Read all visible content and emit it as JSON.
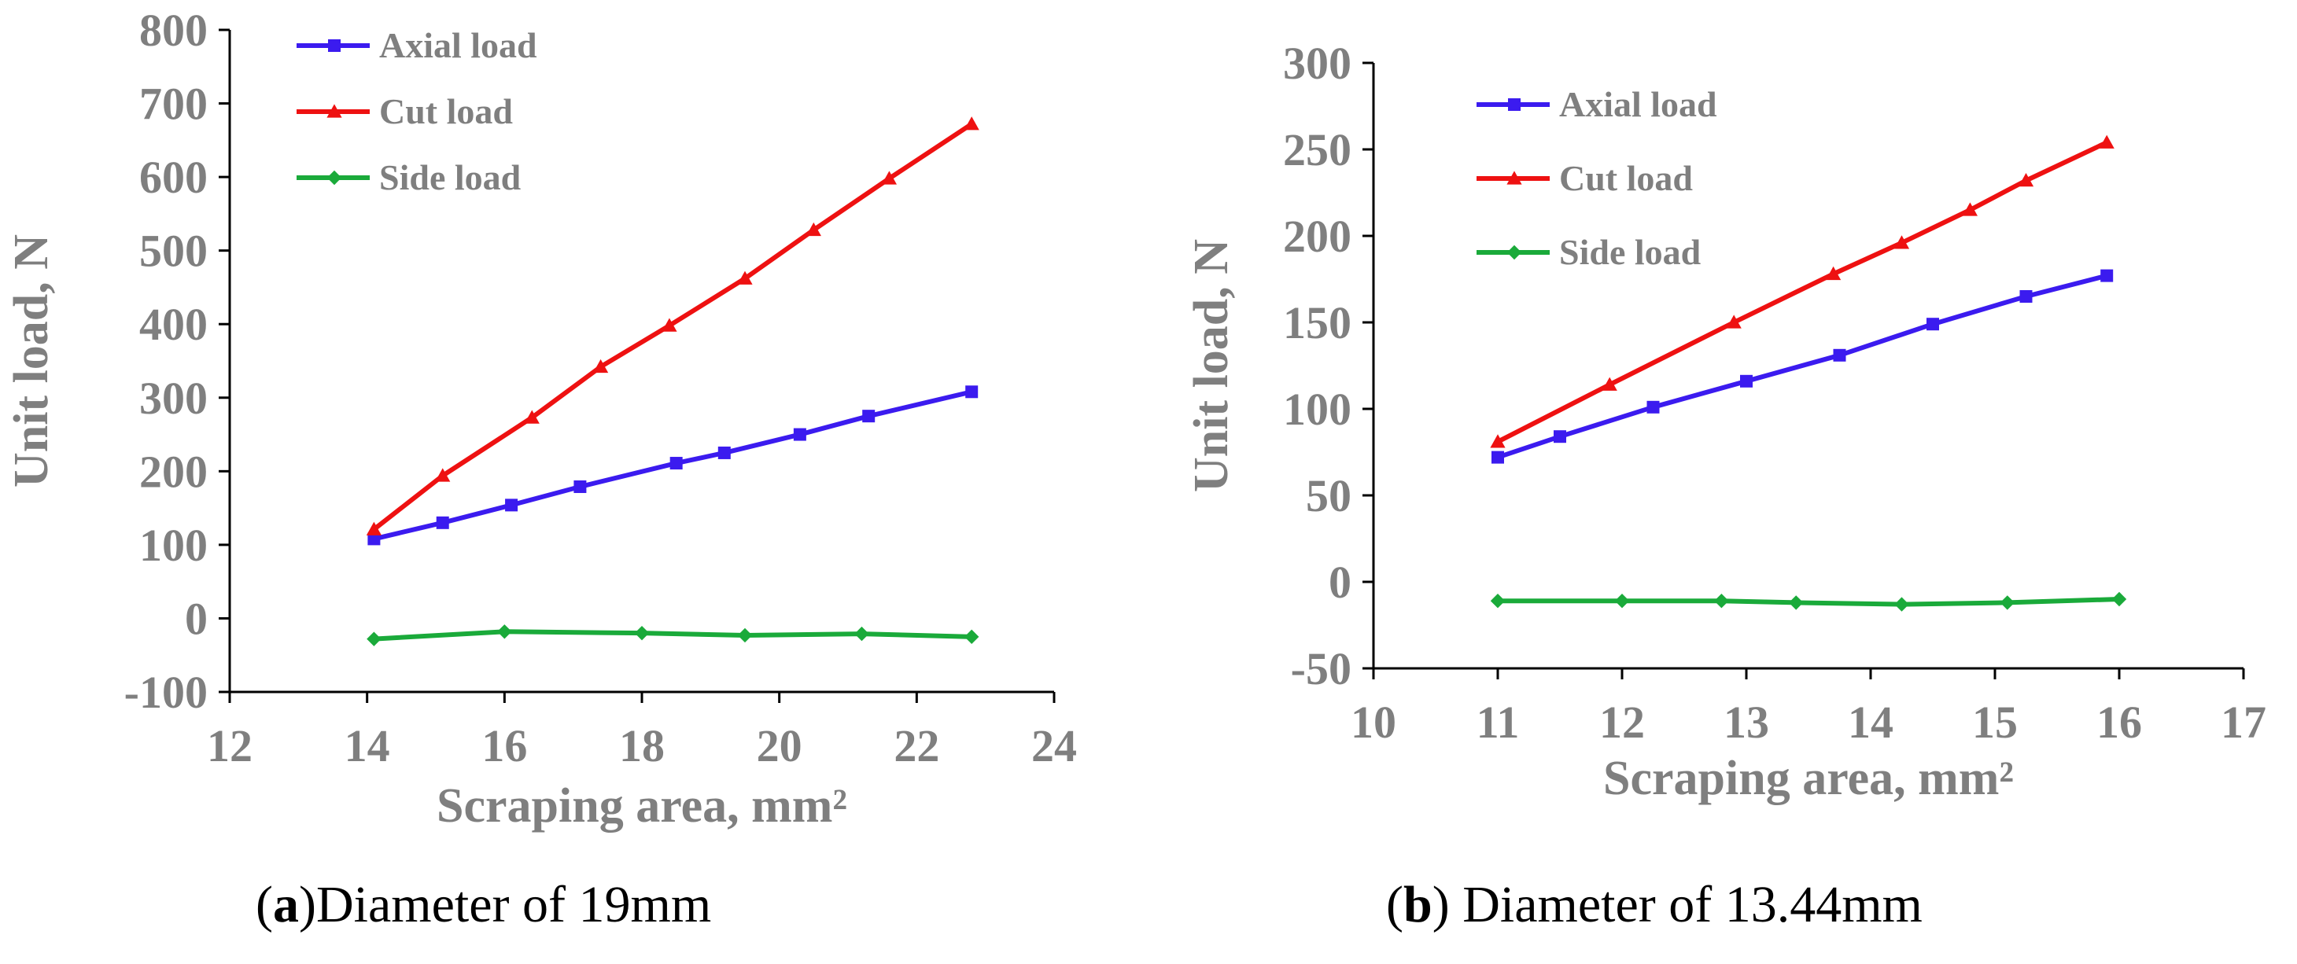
{
  "chart_data": [
    {
      "type": "line",
      "caption_letter": "a",
      "caption_open": "(",
      "caption_close": ")",
      "caption_text": "Diameter of 19mm",
      "xlabel": "Scraping area, mm²",
      "ylabel": "Unit load, N",
      "xlim": [
        12,
        24
      ],
      "xticks": [
        12,
        14,
        16,
        18,
        20,
        22,
        24
      ],
      "ylim": [
        -100,
        800
      ],
      "yticks": [
        -100,
        0,
        100,
        200,
        300,
        400,
        500,
        600,
        700,
        800
      ],
      "legend_position": "top-left",
      "series": [
        {
          "name": "Axial load",
          "color": "#3b1bef",
          "marker": "square",
          "x": [
            14.1,
            15.1,
            16.1,
            17.1,
            18.5,
            19.2,
            20.3,
            21.3,
            22.8
          ],
          "y": [
            108,
            130,
            154,
            179,
            211,
            225,
            250,
            275,
            308
          ]
        },
        {
          "name": "Cut load",
          "color": "#ee1111",
          "marker": "triangle",
          "x": [
            14.1,
            15.1,
            16.4,
            17.4,
            18.4,
            19.5,
            20.5,
            21.6,
            22.8
          ],
          "y": [
            121,
            194,
            273,
            342,
            398,
            462,
            528,
            598,
            672
          ]
        },
        {
          "name": "Side load",
          "color": "#1aaa3a",
          "marker": "diamond",
          "x": [
            14.1,
            16.0,
            18.0,
            19.5,
            21.2,
            22.8
          ],
          "y": [
            -28,
            -18,
            -20,
            -23,
            -21,
            -25
          ]
        }
      ]
    },
    {
      "type": "line",
      "caption_letter": "b",
      "caption_open": "(",
      "caption_close": ")",
      "caption_text": " Diameter of 13.44mm",
      "xlabel": "Scraping area, mm²",
      "ylabel": "Unit load, N",
      "xlim": [
        10,
        17
      ],
      "xticks": [
        10,
        11,
        12,
        13,
        14,
        15,
        16,
        17
      ],
      "ylim": [
        -50,
        300
      ],
      "yticks": [
        -50,
        0,
        50,
        100,
        150,
        200,
        250,
        300
      ],
      "legend_position": "top-left",
      "series": [
        {
          "name": "Axial load",
          "color": "#3b1bef",
          "marker": "square",
          "x": [
            11.0,
            11.5,
            12.25,
            13.0,
            13.75,
            14.5,
            15.25,
            15.9
          ],
          "y": [
            72,
            84,
            101,
            116,
            131,
            149,
            165,
            177
          ]
        },
        {
          "name": "Cut load",
          "color": "#ee1111",
          "marker": "triangle",
          "x": [
            11.0,
            11.9,
            12.9,
            13.7,
            14.25,
            14.8,
            15.25,
            15.9
          ],
          "y": [
            81,
            114,
            150,
            178,
            196,
            215,
            232,
            254
          ]
        },
        {
          "name": "Side load",
          "color": "#1aaa3a",
          "marker": "diamond",
          "x": [
            11.0,
            12.0,
            12.8,
            13.4,
            14.25,
            15.1,
            16.0
          ],
          "y": [
            -11,
            -11,
            -11,
            -12,
            -13,
            -12,
            -10
          ]
        }
      ]
    }
  ]
}
